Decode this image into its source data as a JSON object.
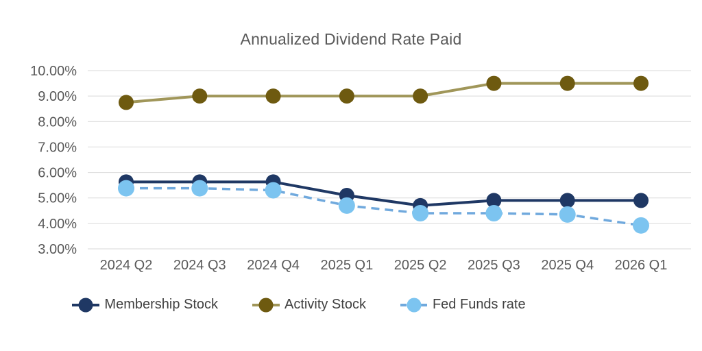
{
  "chart_data": {
    "type": "line",
    "title": "Annualized Dividend Rate Paid",
    "categories": [
      "2024 Q2",
      "2024 Q3",
      "2024 Q4",
      "2025 Q1",
      "2025 Q2",
      "2025 Q3",
      "2025 Q4",
      "2026 Q1"
    ],
    "series": [
      {
        "name": "Membership Stock",
        "values": [
          5.63,
          5.63,
          5.63,
          5.1,
          4.7,
          4.9,
          4.9,
          4.9
        ],
        "line_color": "#1f3864",
        "marker_color": "#1f3864",
        "style": "solid"
      },
      {
        "name": "Activity Stock",
        "values": [
          8.75,
          9.0,
          9.0,
          9.0,
          9.0,
          9.5,
          9.5,
          9.5
        ],
        "line_color": "#a09659",
        "marker_color": "#6e5a10",
        "style": "solid"
      },
      {
        "name": "Fed Funds rate",
        "values": [
          5.38,
          5.38,
          5.3,
          4.7,
          4.4,
          4.4,
          4.35,
          3.92
        ],
        "line_color": "#70a9dd",
        "marker_color": "#7cc4f0",
        "style": "dashed"
      }
    ],
    "ylim": [
      3,
      10
    ],
    "yticks": [
      10,
      9,
      8,
      7,
      6,
      5,
      4,
      3
    ],
    "ytick_suffix": "%",
    "ytick_decimals": 2,
    "xlabel": "",
    "ylabel": "",
    "grid": "horizontal",
    "legend_position": "bottom",
    "grid_color": "#d9d9d9",
    "axis_label_color": "#595959",
    "title_color": "#595959"
  }
}
